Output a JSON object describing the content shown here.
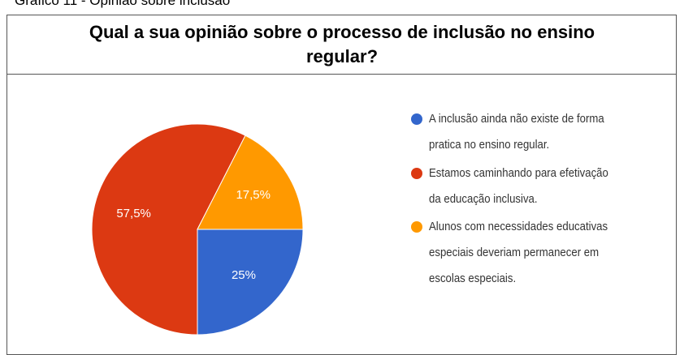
{
  "caption": "Gráfico 11 - Opinião sobre inclusão",
  "chart_data": {
    "type": "pie",
    "title": "Qual a sua opinião sobre o processo de inclusão no ensino regular?",
    "categories": [
      "A inclusão ainda não existe de forma pratica no ensino regular.",
      "Estamos caminhando para efetivação da educação inclusiva.",
      "Alunos com necessidades educativas especiais deveriam permanecer em escolas especiais."
    ],
    "values": [
      25,
      57.5,
      17.5
    ],
    "value_labels": [
      "25%",
      "57,5%",
      "17,5%"
    ],
    "colors": [
      "#3366cc",
      "#dc3912",
      "#ff9900"
    ],
    "legend": "right"
  }
}
